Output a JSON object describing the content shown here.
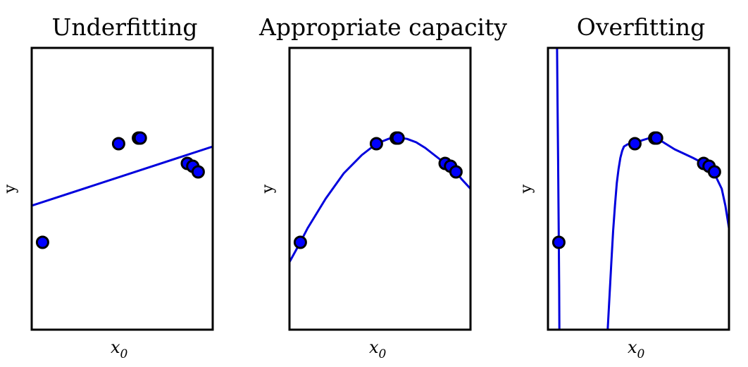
{
  "chart_data": [
    {
      "type": "scatter",
      "title": "Underfitting",
      "xlabel": "x",
      "xlabel_sub": "0",
      "ylabel": "y",
      "xlim": [
        0,
        1
      ],
      "ylim": [
        0,
        1
      ],
      "colors": {
        "points": "#0000ff",
        "line": "#0000dd"
      },
      "points": {
        "x": [
          0.06,
          0.48,
          0.59,
          0.6,
          0.86,
          0.89,
          0.92
        ],
        "y": [
          0.31,
          0.66,
          0.68,
          0.68,
          0.59,
          0.58,
          0.56
        ]
      },
      "fit": {
        "x": [
          0.0,
          1.0
        ],
        "y": [
          0.44,
          0.65
        ]
      }
    },
    {
      "type": "scatter",
      "title": "Appropriate capacity",
      "xlabel": "x",
      "xlabel_sub": "0",
      "ylabel": "y",
      "xlim": [
        0,
        1
      ],
      "ylim": [
        0,
        1
      ],
      "colors": {
        "points": "#0000ff",
        "line": "#0000dd"
      },
      "points": {
        "x": [
          0.06,
          0.48,
          0.59,
          0.6,
          0.86,
          0.89,
          0.92
        ],
        "y": [
          0.31,
          0.66,
          0.68,
          0.68,
          0.59,
          0.58,
          0.56
        ]
      },
      "fit": {
        "x": [
          0.0,
          0.06,
          0.1,
          0.2,
          0.3,
          0.4,
          0.48,
          0.55,
          0.6,
          0.65,
          0.7,
          0.75,
          0.8,
          0.86,
          0.9,
          0.92,
          0.95,
          1.0
        ],
        "y": [
          0.24,
          0.31,
          0.36,
          0.465,
          0.555,
          0.62,
          0.66,
          0.678,
          0.682,
          0.677,
          0.665,
          0.645,
          0.62,
          0.59,
          0.57,
          0.56,
          0.535,
          0.5
        ]
      }
    },
    {
      "type": "scatter",
      "title": "Overfitting",
      "xlabel": "x",
      "xlabel_sub": "0",
      "ylabel": "y",
      "xlim": [
        0,
        1
      ],
      "ylim": [
        0,
        1
      ],
      "colors": {
        "points": "#0000ff",
        "line": "#0000dd"
      },
      "points": {
        "x": [
          0.06,
          0.48,
          0.59,
          0.6,
          0.86,
          0.89,
          0.92
        ],
        "y": [
          0.31,
          0.66,
          0.68,
          0.68,
          0.59,
          0.58,
          0.56
        ]
      },
      "fit_segments": [
        {
          "x": [
            0.05,
            0.053,
            0.056,
            0.058,
            0.06,
            0.062,
            0.063
          ],
          "y": [
            1.0,
            0.8,
            0.6,
            0.45,
            0.31,
            0.15,
            0.0
          ]
        },
        {
          "x": [
            0.33,
            0.34,
            0.35,
            0.36,
            0.37,
            0.38,
            0.39,
            0.4,
            0.41,
            0.42,
            0.44,
            0.46,
            0.48,
            0.52,
            0.56,
            0.6,
            0.65,
            0.7,
            0.75,
            0.8,
            0.86,
            0.9,
            0.93,
            0.96,
            0.98,
            1.0
          ],
          "y": [
            0.0,
            0.12,
            0.24,
            0.35,
            0.44,
            0.52,
            0.57,
            0.61,
            0.635,
            0.65,
            0.658,
            0.66,
            0.662,
            0.672,
            0.68,
            0.68,
            0.66,
            0.64,
            0.625,
            0.61,
            0.59,
            0.565,
            0.54,
            0.5,
            0.44,
            0.36
          ]
        }
      ]
    }
  ]
}
